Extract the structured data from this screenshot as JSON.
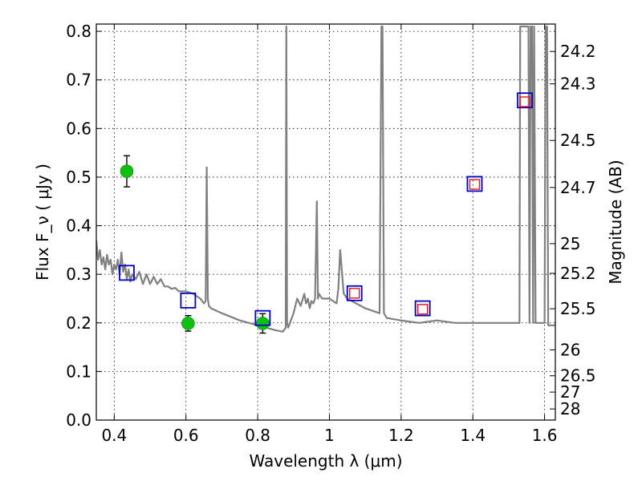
{
  "chart_data": {
    "type": "scatter",
    "xlabel": "Wavelength  λ (μm)",
    "ylabel": "Flux  F_ν  ( μJy )",
    "y2label": "Magnitude (AB)",
    "xlim": [
      0.35,
      1.63
    ],
    "ylim": [
      0.0,
      0.815
    ],
    "grid": true,
    "xticks": [
      0.4,
      0.6,
      0.8,
      1.0,
      1.2,
      1.4,
      1.6
    ],
    "xtick_labels": [
      "0.4",
      "0.6",
      "0.8",
      "1",
      "1.2",
      "1.4",
      "1.6"
    ],
    "yticks": [
      0.0,
      0.1,
      0.2,
      0.3,
      0.4,
      0.5,
      0.6,
      0.7,
      0.8
    ],
    "ytick_labels": [
      "0.0",
      "0.1",
      "0.2",
      "0.3",
      "0.4",
      "0.5",
      "0.6",
      "0.7",
      "0.8"
    ],
    "mag_ticks": [
      24.2,
      24.3,
      24.5,
      24.7,
      25,
      25.2,
      25.5,
      26,
      26.5,
      27,
      28
    ],
    "mag_tick_labels": [
      "24.2",
      "24.3",
      "24.5",
      "24.7",
      "25",
      "25.2",
      "25.5",
      "26",
      "26.5",
      "27",
      "28"
    ],
    "series": [
      {
        "kind": "points-errorbar",
        "color": "#10c010",
        "x": [
          0.435,
          0.606,
          0.814
        ],
        "y": [
          0.512,
          0.199,
          0.199
        ],
        "yerr": [
          0.032,
          0.016,
          0.02
        ]
      },
      {
        "kind": "open-squares",
        "color": "#0000cc",
        "x": [
          0.435,
          0.606,
          0.814,
          1.07,
          1.26,
          1.405,
          1.545
        ],
        "y": [
          0.303,
          0.246,
          0.21,
          0.261,
          0.23,
          0.486,
          0.658
        ]
      },
      {
        "kind": "open-squares-small",
        "color": "#ee1111",
        "x": [
          1.07,
          1.26,
          1.405,
          1.545
        ],
        "y": [
          0.261,
          0.228,
          0.485,
          0.655
        ]
      },
      {
        "kind": "line",
        "color": "#808080",
        "x": [
          0.35,
          0.355,
          0.36,
          0.365,
          0.37,
          0.375,
          0.38,
          0.385,
          0.39,
          0.395,
          0.4,
          0.405,
          0.41,
          0.415,
          0.42,
          0.425,
          0.43,
          0.435,
          0.44,
          0.445,
          0.45,
          0.46,
          0.47,
          0.48,
          0.49,
          0.5,
          0.51,
          0.52,
          0.53,
          0.54,
          0.55,
          0.56,
          0.57,
          0.58,
          0.6,
          0.62,
          0.64,
          0.65,
          0.655,
          0.658,
          0.661,
          0.664,
          0.67,
          0.7,
          0.75,
          0.8,
          0.85,
          0.87,
          0.878,
          0.88,
          0.882,
          0.885,
          0.89,
          0.9,
          0.91,
          0.92,
          0.93,
          0.935,
          0.94,
          0.945,
          0.95,
          0.955,
          0.96,
          0.965,
          0.968,
          0.971,
          0.975,
          0.98,
          1.0,
          1.02,
          1.025,
          1.03,
          1.04,
          1.05,
          1.1,
          1.14,
          1.145,
          1.148,
          1.152,
          1.16,
          1.2,
          1.25,
          1.3,
          1.35,
          1.4,
          1.45,
          1.5,
          1.53,
          1.532,
          1.535,
          1.54,
          1.55,
          1.555,
          1.558,
          1.561,
          1.565,
          1.568,
          1.571,
          1.575,
          1.59,
          1.6,
          1.603,
          1.607,
          1.61,
          1.63
        ],
        "y": [
          0.37,
          0.33,
          0.35,
          0.32,
          0.335,
          0.31,
          0.34,
          0.32,
          0.33,
          0.3,
          0.32,
          0.31,
          0.33,
          0.3,
          0.345,
          0.305,
          0.32,
          0.29,
          0.31,
          0.285,
          0.3,
          0.29,
          0.305,
          0.28,
          0.3,
          0.28,
          0.295,
          0.28,
          0.29,
          0.275,
          0.275,
          0.27,
          0.272,
          0.265,
          0.265,
          0.26,
          0.25,
          0.24,
          0.245,
          0.52,
          0.25,
          0.235,
          0.23,
          0.22,
          0.205,
          0.195,
          0.185,
          0.182,
          0.19,
          0.81,
          0.2,
          0.19,
          0.2,
          0.22,
          0.25,
          0.235,
          0.26,
          0.24,
          0.25,
          0.23,
          0.245,
          0.24,
          0.25,
          0.45,
          0.25,
          0.26,
          0.255,
          0.25,
          0.25,
          0.24,
          0.27,
          0.35,
          0.26,
          0.25,
          0.23,
          0.22,
          0.81,
          0.81,
          0.22,
          0.21,
          0.205,
          0.2,
          0.205,
          0.2,
          0.2,
          0.2,
          0.2,
          0.2,
          0.81,
          0.81,
          0.81,
          0.81,
          0.81,
          0.2,
          0.81,
          0.81,
          0.2,
          0.81,
          0.2,
          0.2,
          0.2,
          0.81,
          0.81,
          0.195,
          0.195
        ]
      }
    ]
  }
}
